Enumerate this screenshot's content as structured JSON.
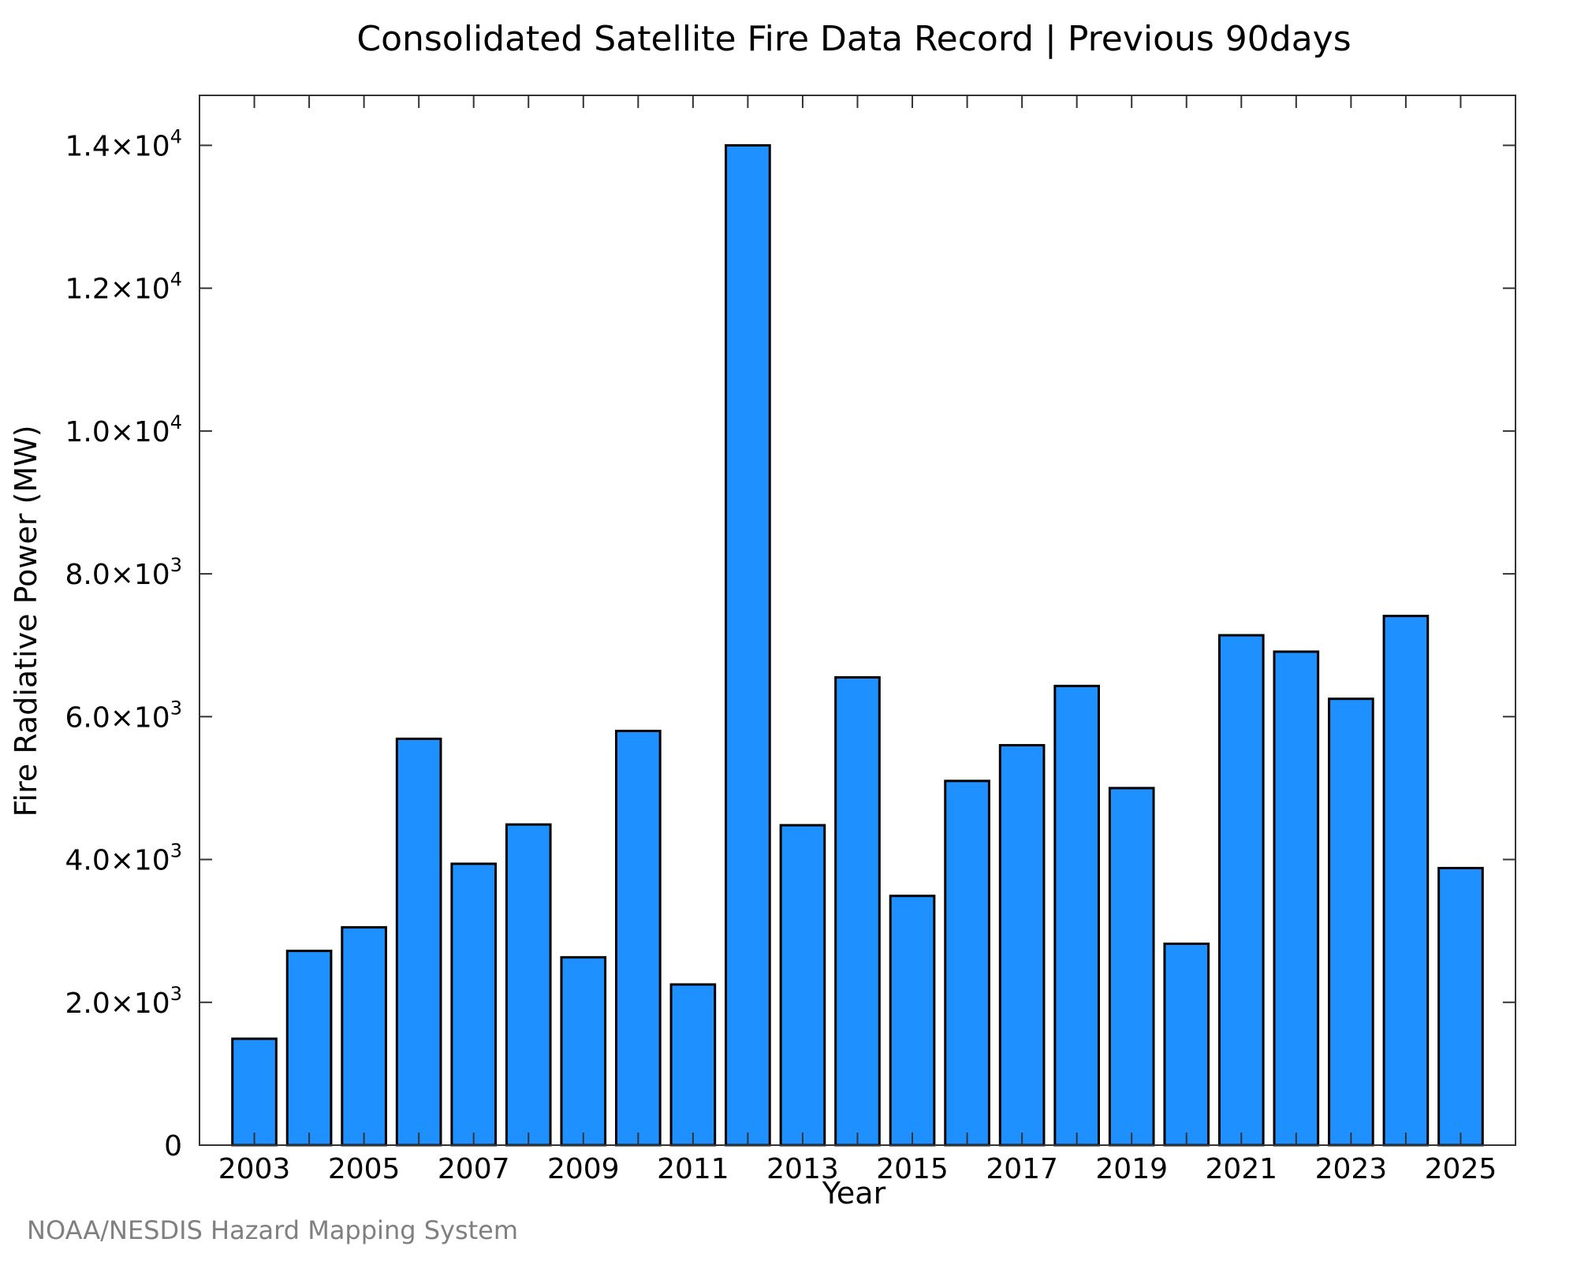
{
  "chart_data": {
    "type": "bar",
    "title": "Consolidated Satellite Fire Data Record | Previous 90days",
    "xlabel": "Year",
    "ylabel": "Fire Radiative Power (MW)",
    "x": [
      2003,
      2004,
      2005,
      2006,
      2007,
      2008,
      2009,
      2010,
      2011,
      2012,
      2013,
      2014,
      2015,
      2016,
      2017,
      2018,
      2019,
      2020,
      2021,
      2022,
      2023,
      2024,
      2025
    ],
    "values": [
      1490,
      2720,
      3050,
      5690,
      3940,
      4490,
      2630,
      5800,
      2250,
      14000,
      4480,
      6550,
      3490,
      5100,
      5600,
      6430,
      5000,
      2820,
      7140,
      6910,
      6250,
      7410,
      3880
    ],
    "x_tick_labels": [
      "2003",
      "2005",
      "2007",
      "2009",
      "2011",
      "2013",
      "2015",
      "2017",
      "2019",
      "2021",
      "2023",
      "2025"
    ],
    "y_ticks": [
      {
        "value": 0,
        "mantissa": "0",
        "exp": ""
      },
      {
        "value": 2000,
        "mantissa": "2.0×10",
        "exp": "3"
      },
      {
        "value": 4000,
        "mantissa": "4.0×10",
        "exp": "3"
      },
      {
        "value": 6000,
        "mantissa": "6.0×10",
        "exp": "3"
      },
      {
        "value": 8000,
        "mantissa": "8.0×10",
        "exp": "3"
      },
      {
        "value": 10000,
        "mantissa": "1.0×10",
        "exp": "4"
      },
      {
        "value": 12000,
        "mantissa": "1.2×10",
        "exp": "4"
      },
      {
        "value": 14000,
        "mantissa": "1.4×10",
        "exp": "4"
      }
    ],
    "xlim": [
      2002.0,
      2026.0
    ],
    "ylim": [
      0,
      14700
    ],
    "grid": false,
    "bar_color": "#1e90ff",
    "bar_edge_color": "#000000"
  },
  "credit": "NOAA/NESDIS Hazard Mapping System"
}
